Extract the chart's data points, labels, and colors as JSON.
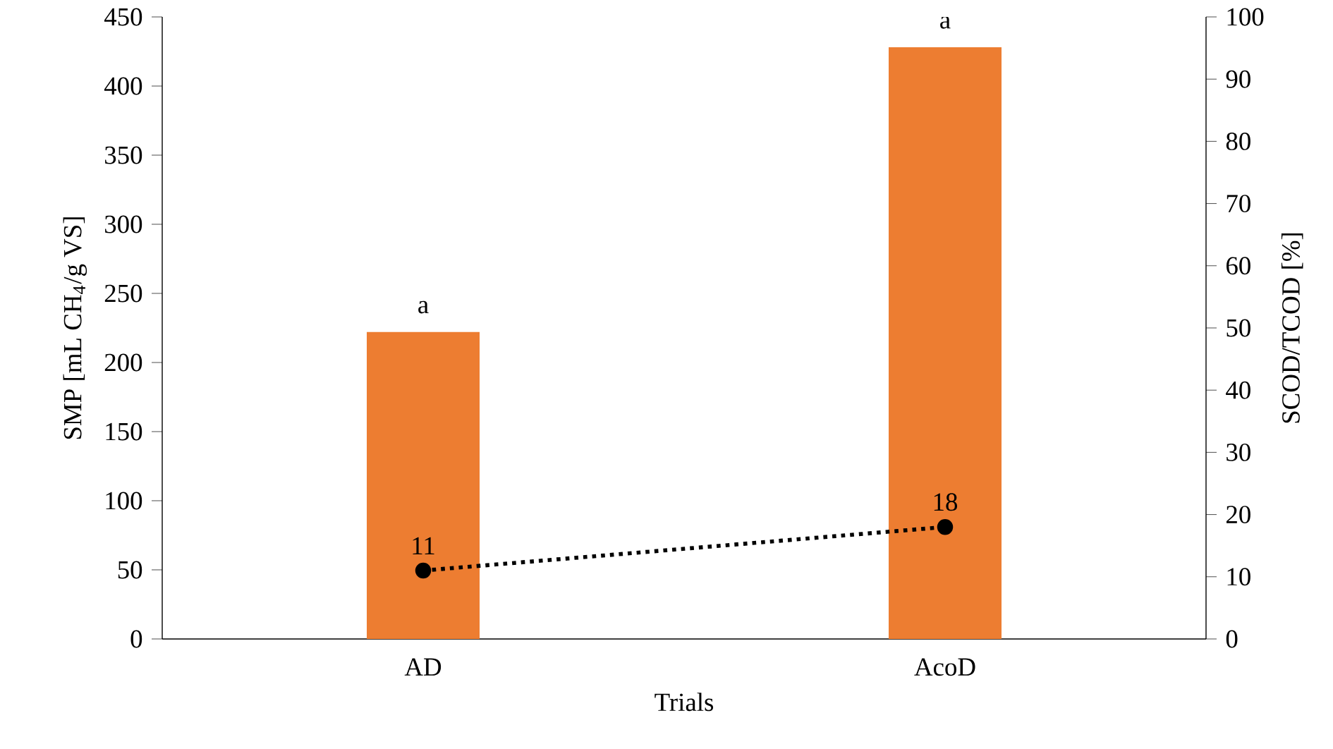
{
  "chart_data": {
    "type": "bar",
    "xlabel": "Trials",
    "ylabel": "SMP [mL CH$_{4}$/g VS]",
    "y2label": "SCOD/TCOD [%]",
    "categories": [
      "AD",
      "AcoD"
    ],
    "series": [
      {
        "color": "#ed7d31",
        "values": [
          222,
          428
        ]
      },
      {
        "type": "line",
        "axis": "y2",
        "color": "#000000",
        "values": [
          11,
          18
        ],
        "value_labels": [
          "11",
          "18"
        ],
        "line_style": "dotted",
        "marker": "circle"
      }
    ],
    "ylim": [
      0,
      450
    ],
    "yticks": [
      0,
      50,
      100,
      150,
      200,
      250,
      300,
      350,
      400,
      450
    ],
    "y2lim": [
      0,
      100
    ],
    "y2ticks": [
      0,
      10,
      20,
      30,
      40,
      50,
      60,
      70,
      80,
      90,
      100
    ],
    "annotations": [
      {
        "text": "a",
        "x": "AD",
        "y": 222
      },
      {
        "text": "a",
        "x": "AcoD",
        "y": 428
      }
    ],
    "grid": false
  }
}
